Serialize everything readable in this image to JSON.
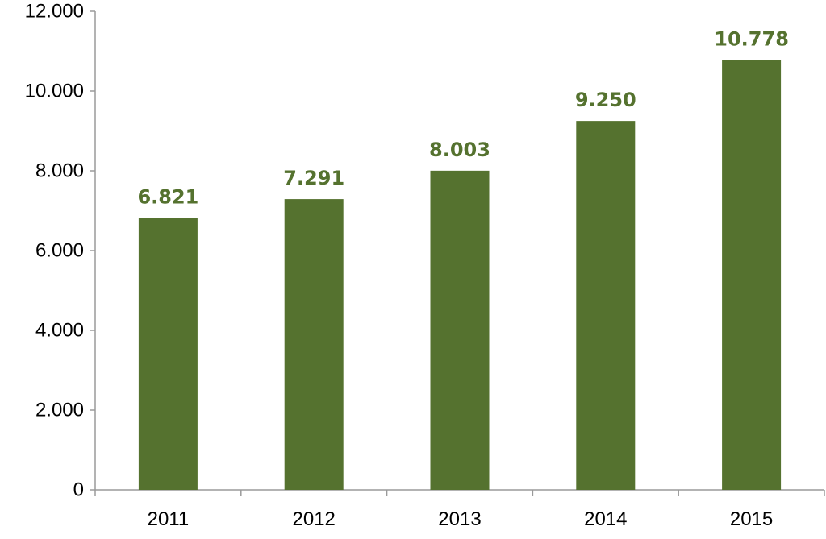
{
  "chart_data": {
    "type": "bar",
    "categories": [
      "2011",
      "2012",
      "2013",
      "2014",
      "2015"
    ],
    "values": [
      6821,
      7291,
      8003,
      9250,
      10778
    ],
    "data_labels": [
      "6.821",
      "7.291",
      "8.003",
      "9.250",
      "10.778"
    ],
    "y_ticks": [
      0,
      2000,
      4000,
      6000,
      8000,
      10000,
      12000
    ],
    "y_tick_labels": [
      "0",
      "2.000",
      "4.000",
      "6.000",
      "8.000",
      "10.000",
      "12.000"
    ],
    "ylim": [
      0,
      12000
    ],
    "grid": false,
    "legend": "none",
    "title": "",
    "xlabel": "",
    "ylabel": "",
    "bar_color": "#55722f",
    "label_color": "#55722f"
  }
}
